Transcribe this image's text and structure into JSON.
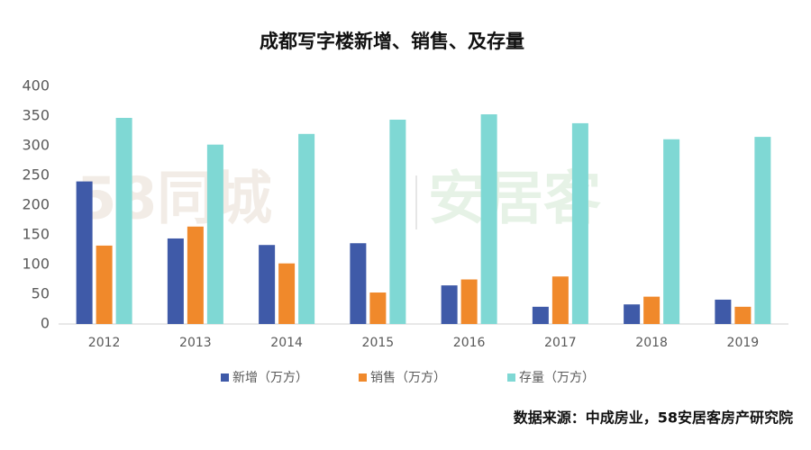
{
  "chart_data": {
    "type": "bar",
    "title": "成都写字楼新增、销售、及存量",
    "categories": [
      "2012",
      "2013",
      "2014",
      "2015",
      "2016",
      "2017",
      "2018",
      "2019"
    ],
    "series": [
      {
        "name": "新增（万方）",
        "color": "#3f5aa8",
        "values": [
          240,
          144,
          133,
          136,
          65,
          29,
          33,
          41
        ]
      },
      {
        "name": "销售（万方）",
        "color": "#f0892b",
        "values": [
          132,
          164,
          102,
          53,
          75,
          80,
          46,
          29
        ]
      },
      {
        "name": "存量（万方）",
        "color": "#7fd8d4",
        "values": [
          347,
          302,
          320,
          344,
          353,
          338,
          311,
          315
        ]
      }
    ],
    "ylim": [
      0,
      400
    ],
    "yticks": [
      0,
      50,
      100,
      150,
      200,
      250,
      300,
      350,
      400
    ],
    "grid": false,
    "legend": "bottom",
    "watermark": [
      "58同城",
      "安居客"
    ],
    "source": "数据来源：中成房业，58安居客房产研究院"
  }
}
